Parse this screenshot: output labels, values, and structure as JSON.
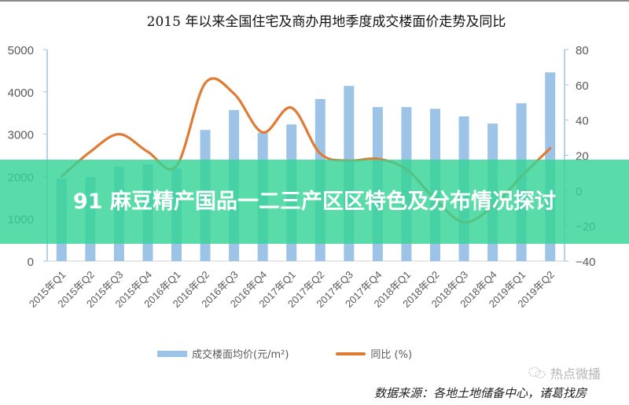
{
  "header": {
    "title": "2015 年以来全国住宅及商办用地季度成交楼面价走势及同比"
  },
  "banner": {
    "text": "91 麻豆精产国品一二三产区区特色及分布情况探讨"
  },
  "legend": {
    "bar_label": "成交楼面均价(元/m²)",
    "line_label": "同比 (%)"
  },
  "watermark": {
    "icon": "wechat-bubble-icon",
    "text": "热点微播"
  },
  "source": {
    "text": "数据来源：各地土地储备中心，诸葛找房"
  },
  "colors": {
    "bar": "#9dc3e6",
    "line": "#e07b33",
    "axis": "#9dc3e6",
    "banner": "#34d496",
    "tick_text": "#595959"
  },
  "chart_data": {
    "type": "bar+line",
    "title": "2015 年以来全国住宅及商办用地季度成交楼面价走势及同比",
    "categories": [
      "2015年Q1",
      "2015年Q2",
      "2015年Q3",
      "2015年Q4",
      "2016年Q1",
      "2016年Q2",
      "2016年Q3",
      "2016年Q4",
      "2017年Q1",
      "2017年Q2",
      "2017年Q3",
      "2017年Q4",
      "2018年Q1",
      "2018年Q2",
      "2018年Q3",
      "2018年Q4",
      "2019年Q1",
      "2019年Q2"
    ],
    "series": [
      {
        "name": "成交楼面均价(元/m²)",
        "type": "bar",
        "axis": "left",
        "values": [
          1950,
          1990,
          2230,
          2290,
          2190,
          3100,
          3570,
          3030,
          3230,
          3830,
          4140,
          3640,
          3640,
          3600,
          3420,
          3250,
          3730,
          4460
        ]
      },
      {
        "name": "同比 (%)",
        "type": "line",
        "axis": "right",
        "values": [
          8,
          22,
          32,
          22,
          14,
          61,
          55,
          33,
          47,
          21,
          17,
          18,
          12,
          -5,
          -18,
          -9,
          8,
          24
        ]
      }
    ],
    "y_left": {
      "min": 0,
      "max": 5000,
      "ticks": [
        0,
        1000,
        2000,
        3000,
        4000,
        5000
      ]
    },
    "y_right": {
      "min": -40,
      "max": 80,
      "ticks": [
        -40,
        -20,
        0,
        20,
        40,
        60,
        80
      ]
    },
    "xlabel": "",
    "ylabel": "",
    "grid": false,
    "legend_position": "bottom"
  }
}
